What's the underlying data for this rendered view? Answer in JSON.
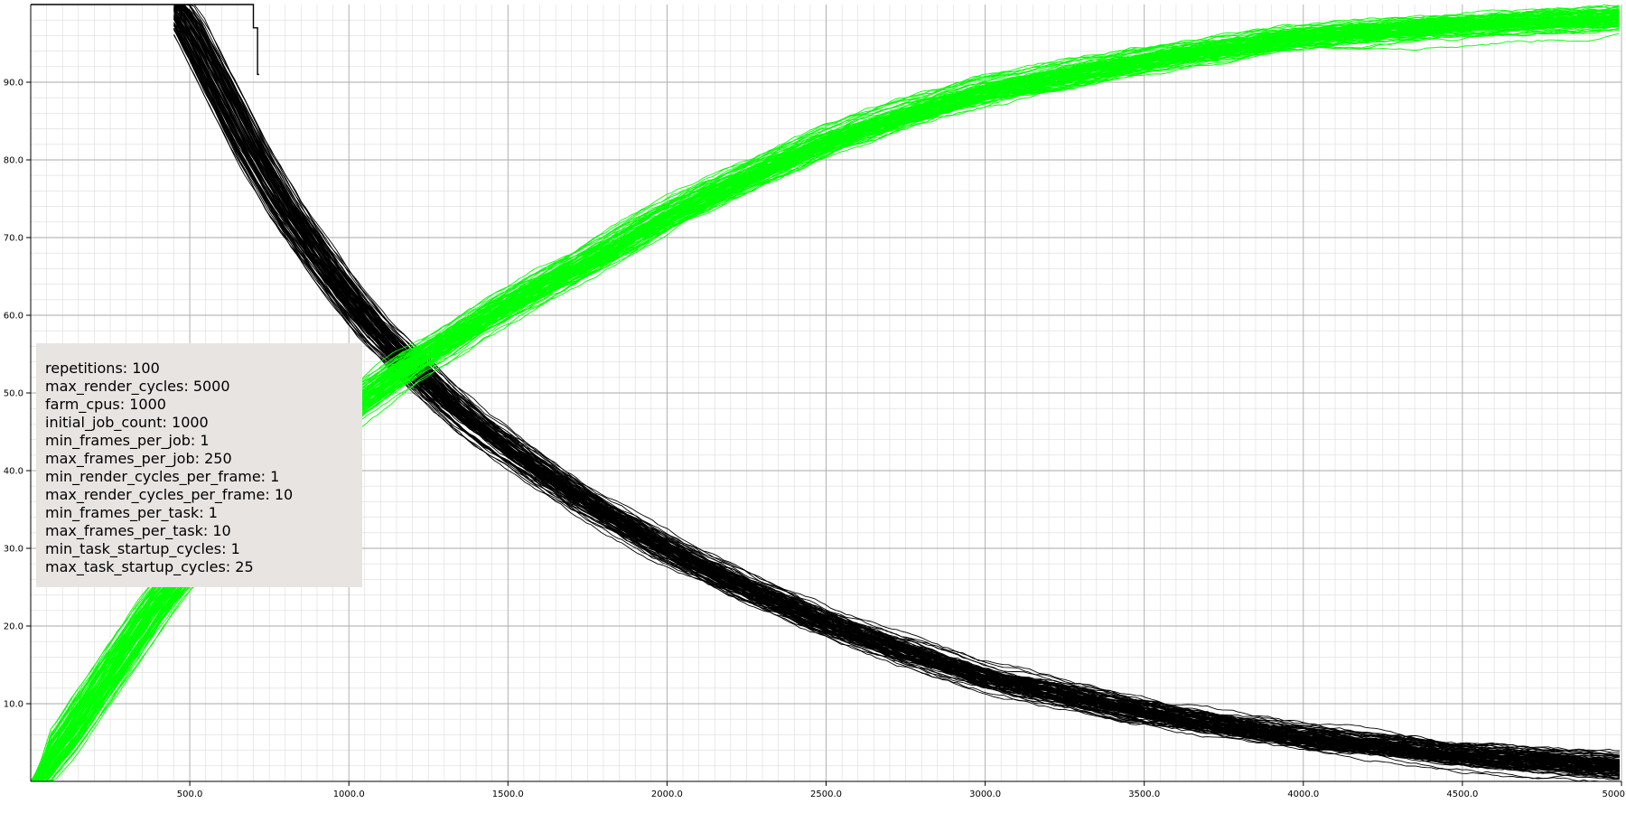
{
  "chart_data": {
    "type": "line",
    "title": "",
    "xlabel": "",
    "ylabel": "",
    "xlim": [
      0,
      5000
    ],
    "ylim": [
      0,
      100
    ],
    "x_ticks": [
      500,
      1000,
      1500,
      2000,
      2500,
      3000,
      3500,
      4000,
      4500,
      5000
    ],
    "x_tick_labels": [
      "500.0",
      "1000.0",
      "1500.0",
      "2000.0",
      "2500.0",
      "3000.0",
      "3500.0",
      "4000.0",
      "4500.0",
      "5000"
    ],
    "y_ticks": [
      10,
      20,
      30,
      40,
      50,
      60,
      70,
      80,
      90
    ],
    "y_tick_labels": [
      "10.0",
      "20.0",
      "30.0",
      "40.0",
      "50.0",
      "60.0",
      "70.0",
      "80.0",
      "90.0"
    ],
    "grid": true,
    "minor_grid": true,
    "series_count_per_group": 100,
    "series_groups": [
      {
        "color": "#000000",
        "mean_curve": {
          "x": [
            450,
            500,
            600,
            700,
            800,
            900,
            1000,
            1100,
            1200,
            1300,
            1400,
            1500,
            1750,
            2000,
            2250,
            2500,
            2750,
            3000,
            3500,
            4000,
            4500,
            5000
          ],
          "y": [
            100,
            97,
            89,
            81,
            74,
            68,
            62.5,
            57.5,
            53.5,
            49.5,
            46,
            43,
            36,
            30,
            25,
            20.5,
            16.8,
            13.5,
            9,
            5.8,
            3.5,
            2
          ]
        },
        "step_trace": {
          "x": [
            0,
            700,
            700,
            713,
            713,
            718
          ],
          "y": [
            100,
            100,
            97,
            97,
            91,
            91
          ]
        }
      },
      {
        "color": "#00ff00",
        "mean_curve": {
          "x": [
            0,
            100,
            200,
            300,
            400,
            500,
            600,
            700,
            800,
            900,
            1000,
            1100,
            1200,
            1300,
            1400,
            1500,
            1750,
            2000,
            2250,
            2500,
            2750,
            3000,
            3500,
            4000,
            4500,
            5000
          ],
          "y": [
            0,
            5,
            11,
            17,
            23,
            28,
            33,
            37,
            41,
            44.5,
            48,
            51,
            54,
            56.5,
            59,
            61.5,
            67,
            73,
            78,
            82.5,
            86,
            89,
            93,
            96,
            97.5,
            98.5
          ]
        }
      }
    ],
    "legend": {
      "placement": "center-left",
      "entries": [
        "repetitions: 100",
        "max_render_cycles: 5000",
        "farm_cpus: 1000",
        "initial_job_count: 1000",
        "min_frames_per_job: 1",
        "max_frames_per_job: 250",
        "min_render_cycles_per_frame: 1",
        "max_render_cycles_per_frame: 10",
        "min_frames_per_task: 1",
        "max_frames_per_task: 10",
        "min_task_startup_cycles: 1",
        "max_task_startup_cycles: 25"
      ]
    }
  },
  "colors": {
    "legend_background": "#e8e4e1",
    "major_grid": "#a9a9a9",
    "minor_grid": "#dcdcdc",
    "axes": "#000000"
  }
}
